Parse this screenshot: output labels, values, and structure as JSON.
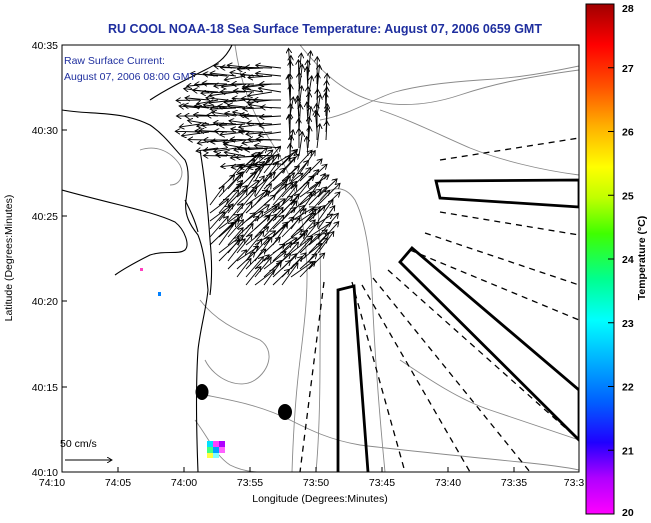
{
  "title": "RU COOL  NOAA-18  Sea Surface Temperature:  August 07, 2006 0659 GMT",
  "legend": {
    "line1": "Raw Surface Current:",
    "line2": "August 07, 2006 08:00 GMT"
  },
  "scale_label": "50 cm/s",
  "x_axis": {
    "label": "Longitude (Degrees:Minutes)",
    "ticks": [
      "74:10",
      "74:05",
      "74:00",
      "73:55",
      "73:50",
      "73:45",
      "73:40",
      "73:35",
      "73:3"
    ]
  },
  "y_axis": {
    "label": "Latitude (Degrees:Minutes)",
    "ticks": [
      "40:35",
      "40:30",
      "40:25",
      "40:20",
      "40:15",
      "40:10"
    ]
  },
  "colorbar": {
    "label": "Temperature (°C)",
    "ticks": [
      "28",
      "27",
      "26",
      "25",
      "24",
      "23",
      "22",
      "21",
      "20"
    ],
    "range": [
      20,
      28
    ],
    "colors": [
      "#ff00ff",
      "#a000ff",
      "#0000ff",
      "#00a0ff",
      "#00ffff",
      "#00ff80",
      "#80ff00",
      "#ffff00",
      "#ffa000",
      "#ff4000",
      "#ff0000",
      "#a00000"
    ]
  },
  "colors": {
    "title": "#1f2f9f",
    "land": "#ffffff",
    "coast": "#000000",
    "isobath": "#888888"
  }
}
